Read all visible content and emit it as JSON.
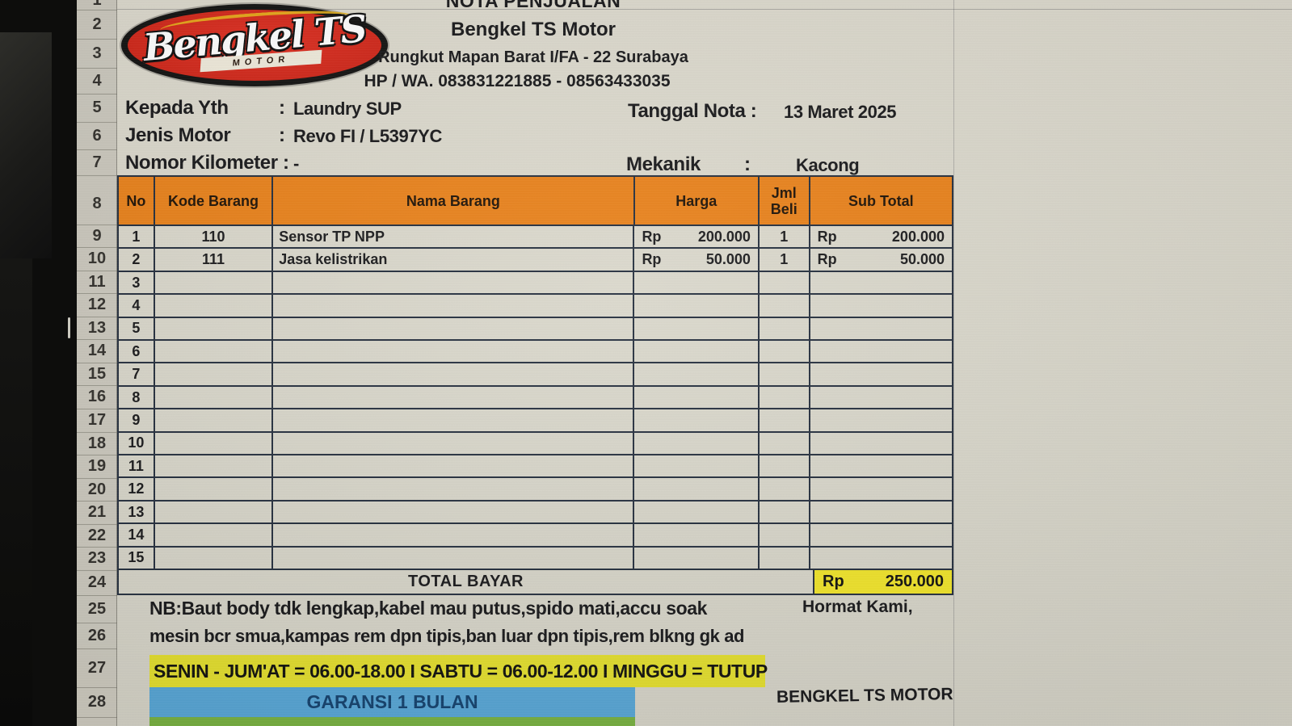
{
  "colors": {
    "header_orange": "#e8821c",
    "total_yellow": "#efe32b",
    "hours_yellow": "#e2dd2f",
    "garansi_blue": "#58a5d4",
    "bottom_green": "#78b041",
    "logo_red": "#d22a1b",
    "grid_line": "#26303f",
    "sheet_bg": "#d8d6ca"
  },
  "sheet": {
    "row_numbers": [
      "1",
      "2",
      "3",
      "4",
      "5",
      "6",
      "7",
      "8",
      "9",
      "10",
      "11",
      "12",
      "13",
      "14",
      "15",
      "16",
      "17",
      "18",
      "19",
      "20",
      "21",
      "22",
      "23",
      "24",
      "25",
      "26",
      "27",
      "28"
    ]
  },
  "header": {
    "doc_title": "NOTA PENJUALAN",
    "shop_name": "Bengkel TS Motor",
    "address": "Rungkut Mapan Barat I/FA - 22 Surabaya",
    "phone": "HP / WA. 083831221885 - 08563433035",
    "logo_text": "Bengkel TS",
    "logo_motor": "MOTOR"
  },
  "info": {
    "kepada_label": "Kepada Yth",
    "kepada_sep": ":",
    "kepada_value": "Laundry SUP",
    "tanggal_label": "Tanggal Nota :",
    "tanggal_value": "13 Maret 2025",
    "jenis_label": "Jenis Motor",
    "jenis_sep": ":",
    "jenis_value": "Revo FI / L5397YC",
    "km_label": "Nomor Kilometer :",
    "km_value": "-",
    "mekanik_label": "Mekanik",
    "mekanik_sep": ":",
    "mekanik_value": "Kacong"
  },
  "table": {
    "headers": [
      "No",
      "Kode Barang",
      "Nama Barang",
      "Harga",
      "Jml Beli",
      "Sub Total"
    ],
    "rows": [
      {
        "no": "1",
        "kode": "110",
        "nama": "Sensor TP NPP",
        "harga_rp": "Rp",
        "harga": "200.000",
        "jml": "1",
        "sub_rp": "Rp",
        "sub": "200.000"
      },
      {
        "no": "2",
        "kode": "111",
        "nama": "Jasa kelistrikan",
        "harga_rp": "Rp",
        "harga": "50.000",
        "jml": "1",
        "sub_rp": "Rp",
        "sub": "50.000"
      },
      {
        "no": "3",
        "kode": "",
        "nama": "",
        "harga_rp": "",
        "harga": "",
        "jml": "",
        "sub_rp": "",
        "sub": ""
      },
      {
        "no": "4",
        "kode": "",
        "nama": "",
        "harga_rp": "",
        "harga": "",
        "jml": "",
        "sub_rp": "",
        "sub": ""
      },
      {
        "no": "5",
        "kode": "",
        "nama": "",
        "harga_rp": "",
        "harga": "",
        "jml": "",
        "sub_rp": "",
        "sub": ""
      },
      {
        "no": "6",
        "kode": "",
        "nama": "",
        "harga_rp": "",
        "harga": "",
        "jml": "",
        "sub_rp": "",
        "sub": ""
      },
      {
        "no": "7",
        "kode": "",
        "nama": "",
        "harga_rp": "",
        "harga": "",
        "jml": "",
        "sub_rp": "",
        "sub": ""
      },
      {
        "no": "8",
        "kode": "",
        "nama": "",
        "harga_rp": "",
        "harga": "",
        "jml": "",
        "sub_rp": "",
        "sub": ""
      },
      {
        "no": "9",
        "kode": "",
        "nama": "",
        "harga_rp": "",
        "harga": "",
        "jml": "",
        "sub_rp": "",
        "sub": ""
      },
      {
        "no": "10",
        "kode": "",
        "nama": "",
        "harga_rp": "",
        "harga": "",
        "jml": "",
        "sub_rp": "",
        "sub": ""
      },
      {
        "no": "11",
        "kode": "",
        "nama": "",
        "harga_rp": "",
        "harga": "",
        "jml": "",
        "sub_rp": "",
        "sub": ""
      },
      {
        "no": "12",
        "kode": "",
        "nama": "",
        "harga_rp": "",
        "harga": "",
        "jml": "",
        "sub_rp": "",
        "sub": ""
      },
      {
        "no": "13",
        "kode": "",
        "nama": "",
        "harga_rp": "",
        "harga": "",
        "jml": "",
        "sub_rp": "",
        "sub": ""
      },
      {
        "no": "14",
        "kode": "",
        "nama": "",
        "harga_rp": "",
        "harga": "",
        "jml": "",
        "sub_rp": "",
        "sub": ""
      },
      {
        "no": "15",
        "kode": "",
        "nama": "",
        "harga_rp": "",
        "harga": "",
        "jml": "",
        "sub_rp": "",
        "sub": ""
      }
    ],
    "total_label": "TOTAL BAYAR",
    "total_cur": "Rp",
    "total_value": "250.000"
  },
  "footer": {
    "nb_line1": "NB:Baut body tdk lengkap,kabel mau putus,spido mati,accu soak",
    "hormat": "Hormat Kami,",
    "nb_line2": "mesin bcr smua,kampas rem dpn tipis,ban luar dpn tipis,rem blkng gk ad",
    "hours": "SENIN - JUM'AT = 06.00-18.00 I SABTU = 06.00-12.00 I MINGGU = TUTUP",
    "garansi": "GARANSI 1 BULAN",
    "signature": "BENGKEL TS MOTOR"
  }
}
